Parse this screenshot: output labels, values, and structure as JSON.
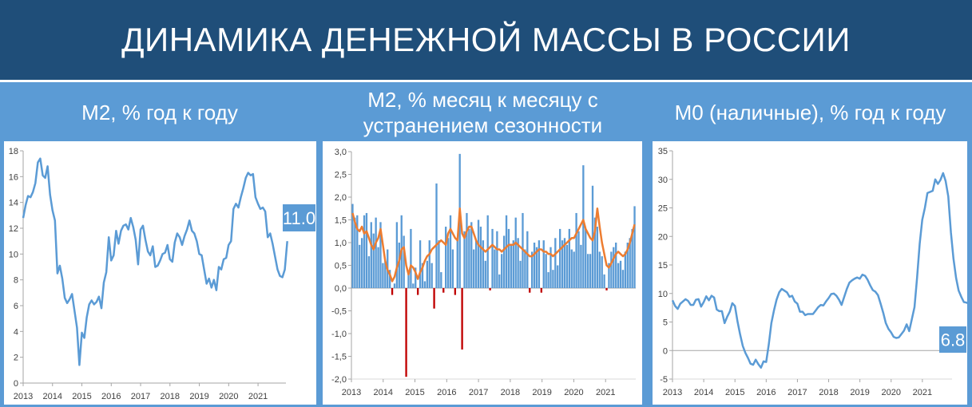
{
  "page": {
    "title": "ДИНАМИКА ДЕНЕЖНОЙ МАССЫ В РОССИИ",
    "colors": {
      "banner": "#1f4e79",
      "band": "#5b9bd5",
      "line": "#5b9bd5",
      "bar_pos": "#5b9bd5",
      "bar_neg": "#c00000",
      "trend": "#ed7d31"
    }
  },
  "chart_data": [
    {
      "type": "line",
      "title": "М2, % год к году",
      "x_start": 2013.0,
      "x_step": 0.0833,
      "xlim": [
        2013.0,
        2021.95
      ],
      "ylim": [
        0,
        18
      ],
      "yticks": [
        "0",
        "2",
        "4",
        "6",
        "8",
        "10",
        "12",
        "14",
        "16",
        "18"
      ],
      "xticks": [
        "2013",
        "2014",
        "2015",
        "2016",
        "2017",
        "2018",
        "2019",
        "2020",
        "2021"
      ],
      "series": [
        {
          "values": [
            12.8,
            13.8,
            14.5,
            14.4,
            14.8,
            15.5,
            17.1,
            17.4,
            16.1,
            15.9,
            16.8,
            14.6,
            13.4,
            12.6,
            8.5,
            9.1,
            8.1,
            6.6,
            6.2,
            6.5,
            6.9,
            5.6,
            4.3,
            1.4,
            3.9,
            3.5,
            5.1,
            6.1,
            6.4,
            6.1,
            6.3,
            6.7,
            5.8,
            7.8,
            8.6,
            11.3,
            9.5,
            9.9,
            11.8,
            10.8,
            11.8,
            12.2,
            12.3,
            11.9,
            12.8,
            12.1,
            11.1,
            9.2,
            11.9,
            12.2,
            11.1,
            10.2,
            9.9,
            10.6,
            9.0,
            9.1,
            9.5,
            10.0,
            10.1,
            10.7,
            9.6,
            9.4,
            10.9,
            11.6,
            11.3,
            10.7,
            11.4,
            11.9,
            12.6,
            11.8,
            11.6,
            11.0,
            10.0,
            9.9,
            8.8,
            7.7,
            8.1,
            7.4,
            8.0,
            7.2,
            9.0,
            8.8,
            9.6,
            9.7,
            10.7,
            11.0,
            13.5,
            13.9,
            13.6,
            14.4,
            15.1,
            15.9,
            16.3,
            16.1,
            16.2,
            14.4,
            13.9,
            13.5,
            13.6,
            13.3,
            11.3,
            11.6,
            10.8,
            9.8,
            8.8,
            8.3,
            8.2,
            8.8,
            11.0
          ]
        }
      ],
      "end_label": "11.0"
    },
    {
      "type": "bar",
      "title": "М2, % месяц к месяцу с устранением сезонности",
      "x_start": 2013.0,
      "x_step": 0.0833,
      "xlim": [
        2013.0,
        2021.95
      ],
      "ylim": [
        -2.0,
        3.0
      ],
      "yticks": [
        "-2,0",
        "-1,5",
        "-1,0",
        "-0,5",
        "0,0",
        "0,5",
        "1,0",
        "1,5",
        "2,0",
        "2,5",
        "3,0"
      ],
      "xticks": [
        "2013",
        "2014",
        "2015",
        "2016",
        "2017",
        "2018",
        "2019",
        "2020",
        "2021"
      ],
      "series": [
        {
          "values": [
            1.85,
            1.55,
            1.6,
            0.95,
            1.1,
            1.6,
            1.65,
            0.7,
            1.45,
            1.2,
            1.55,
            0.9,
            1.45,
            0.55,
            0.6,
            0.85,
            0.4,
            -0.15,
            0.1,
            1.45,
            1.0,
            1.6,
            1.15,
            -1.95,
            0.35,
            1.3,
            0.1,
            0.45,
            -0.15,
            1.05,
            0.55,
            0.15,
            0.6,
            1.05,
            0.55,
            -0.45,
            2.3,
            1.05,
            0.35,
            -0.1,
            1.35,
            1.1,
            1.6,
            0.85,
            -0.15,
            1.1,
            2.95,
            -1.35,
            1.25,
            1.65,
            1.3,
            1.45,
            0.85,
            1.05,
            1.5,
            1.35,
            1.05,
            0.6,
            1.6,
            -0.05,
            1.3,
            0.85,
            1.25,
            0.3,
            0.75,
            1.15,
            1.6,
            1.3,
            0.95,
            1.05,
            1.55,
            1.1,
            0.6,
            1.65,
            0.85,
            1.25,
            -0.1,
            0.8,
            1.0,
            0.9,
            1.05,
            -0.1,
            1.05,
            0.75,
            0.35,
            0.9,
            0.4,
            1.1,
            0.5,
            1.3,
            1.05,
            1.1,
            0.95,
            1.3,
            0.85,
            0.8,
            1.65,
            1.25,
            0.95,
            2.7,
            1.3,
            0.75,
            0.75,
            2.25,
            1.55,
            1.35,
            0.8,
            0.7,
            0.3,
            -0.05,
            0.55,
            0.8,
            0.9,
            1.0,
            0.55,
            0.6,
            0.4,
            0.8,
            1.0,
            1.1,
            1.3,
            1.8
          ]
        },
        {
          "name": "",
          "values": [
            1.65,
            1.45,
            1.3,
            1.25,
            1.35,
            1.2,
            1.25,
            1.1,
            0.95,
            0.85,
            1.0,
            1.1,
            1.3,
            0.95,
            0.6,
            0.4,
            0.3,
            0.15,
            0.25,
            0.45,
            0.6,
            0.85,
            0.9,
            0.5,
            0.3,
            0.5,
            0.45,
            0.35,
            0.2,
            0.35,
            0.45,
            0.6,
            0.7,
            0.75,
            0.85,
            0.9,
            0.95,
            1.0,
            1.05,
            1.0,
            0.95,
            1.2,
            1.3,
            1.2,
            1.1,
            1.05,
            1.75,
            1.2,
            1.1,
            1.25,
            1.35,
            1.35,
            1.2,
            1.05,
            0.95,
            0.9,
            0.85,
            0.8,
            0.85,
            0.9,
            0.95,
            0.9,
            0.85,
            0.85,
            0.8,
            0.85,
            0.9,
            0.95,
            0.95,
            0.95,
            1.0,
            0.95,
            0.9,
            0.85,
            0.8,
            0.75,
            0.7,
            0.7,
            0.75,
            0.8,
            0.85,
            0.85,
            0.8,
            0.8,
            0.75,
            0.75,
            0.7,
            0.75,
            0.8,
            0.85,
            0.9,
            0.95,
            1.0,
            1.05,
            1.1,
            1.1,
            1.2,
            1.3,
            1.4,
            1.5,
            1.3,
            1.2,
            1.1,
            1.05,
            1.25,
            1.75,
            1.35,
            1.0,
            0.75,
            0.5,
            0.45,
            0.55,
            0.65,
            0.75,
            0.8,
            0.75,
            0.7,
            0.75,
            0.85,
            1.0,
            1.2,
            1.4
          ]
        }
      ]
    },
    {
      "type": "line",
      "title": "М0 (наличные), % год к году",
      "x_start": 2013.0,
      "x_step": 0.0833,
      "xlim": [
        2013.0,
        2021.95
      ],
      "ylim": [
        -5,
        35
      ],
      "yticks": [
        "-5",
        "0",
        "5",
        "10",
        "15",
        "20",
        "25",
        "30",
        "35"
      ],
      "xticks": [
        "2013",
        "2014",
        "2015",
        "2016",
        "2017",
        "2018",
        "2019",
        "2020",
        "2021"
      ],
      "series": [
        {
          "values": [
            8.8,
            7.8,
            7.3,
            8.2,
            8.6,
            9.0,
            8.7,
            8.0,
            8.0,
            8.9,
            9.0,
            7.7,
            8.5,
            9.5,
            8.8,
            9.6,
            9.3,
            7.2,
            6.9,
            6.9,
            4.8,
            5.9,
            6.8,
            8.3,
            7.8,
            5.1,
            2.8,
            0.8,
            -0.4,
            -1.3,
            -2.3,
            -2.5,
            -1.6,
            -2.4,
            -3.0,
            -1.9,
            -2.0,
            1.0,
            4.8,
            7.0,
            8.9,
            10.2,
            10.8,
            10.5,
            10.2,
            9.4,
            9.6,
            8.6,
            8.2,
            6.8,
            6.8,
            6.2,
            6.4,
            6.4,
            6.4,
            7.0,
            7.6,
            8.0,
            7.9,
            8.6,
            9.2,
            9.9,
            10.0,
            9.6,
            8.9,
            8.0,
            9.4,
            10.8,
            11.9,
            12.3,
            12.6,
            12.8,
            12.6,
            13.3,
            13.1,
            12.4,
            11.4,
            10.6,
            10.3,
            9.7,
            8.2,
            6.6,
            4.8,
            3.8,
            3.2,
            2.4,
            2.2,
            2.3,
            2.9,
            3.5,
            4.6,
            3.4,
            5.5,
            7.6,
            12.7,
            18.7,
            22.9,
            25.0,
            27.6,
            27.8,
            28.0,
            30.0,
            29.2,
            29.9,
            31.1,
            29.7,
            27.0,
            20.7,
            16.1,
            12.7,
            10.5,
            9.4,
            8.5,
            8.4,
            8.2,
            7.1,
            6.8
          ]
        }
      ],
      "end_label": "6.8"
    }
  ]
}
